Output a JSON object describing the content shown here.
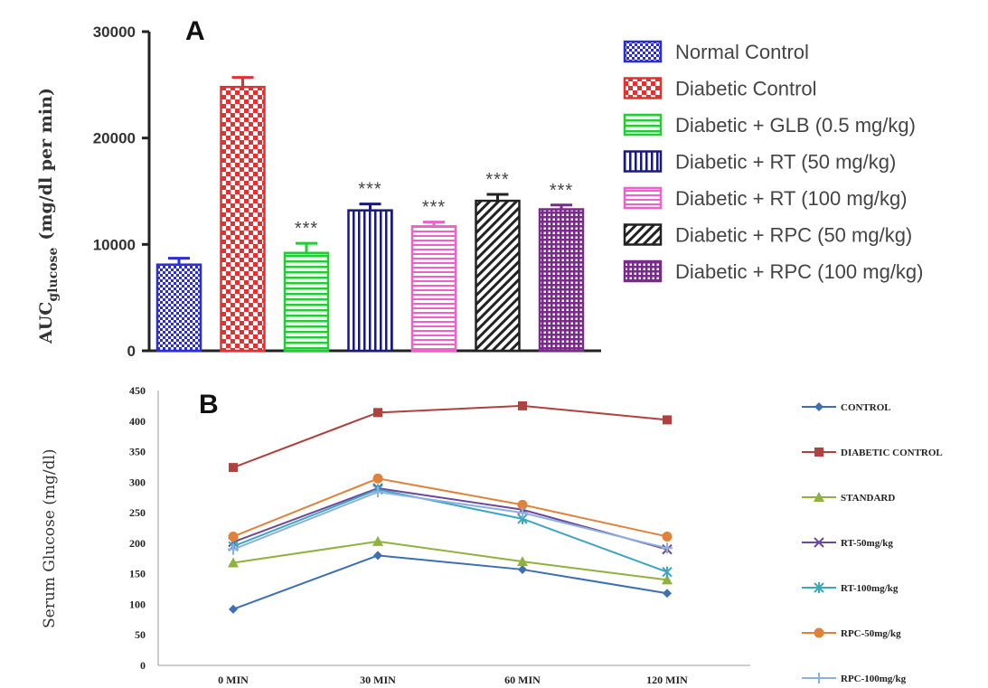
{
  "chart_data": [
    {
      "type": "bar",
      "panel_label": "A",
      "ylabel": "AUC",
      "ylabel_sub": "glucose",
      "ylabel_unit": "(mg/dl per min)",
      "ylim": [
        0,
        30000
      ],
      "yticks": [
        "0",
        "10000",
        "20000",
        "30000"
      ],
      "grid": false,
      "legend_position": "right",
      "series": [
        {
          "name": "Normal Control",
          "value": 8100,
          "error": 600,
          "sig": "",
          "color": "#2b2fd0",
          "pattern": "check-blue"
        },
        {
          "name": "Diabetic Control",
          "value": 24800,
          "error": 900,
          "sig": "",
          "color": "#e53030",
          "pattern": "check-red"
        },
        {
          "name": "Diabetic + GLB (0.5 mg/kg)",
          "value": 9200,
          "error": 900,
          "sig": "***",
          "color": "#22cc33",
          "pattern": "hlines-green"
        },
        {
          "name": "Diabetic + RT (50 mg/kg)",
          "value": 13200,
          "error": 600,
          "sig": "***",
          "color": "#1a1a7a",
          "pattern": "vlines-navy"
        },
        {
          "name": "Diabetic + RT (100 mg/kg)",
          "value": 11700,
          "error": 400,
          "sig": "***",
          "color": "#f060c8",
          "pattern": "hlines-pink"
        },
        {
          "name": "Diabetic + RPC (50 mg/kg)",
          "value": 14100,
          "error": 600,
          "sig": "***",
          "color": "#222222",
          "pattern": "diag-black"
        },
        {
          "name": "Diabetic + RPC (100 mg/kg)",
          "value": 13300,
          "error": 400,
          "sig": "***",
          "color": "#7a2a8a",
          "pattern": "grid-purple"
        }
      ]
    },
    {
      "type": "line",
      "panel_label": "B",
      "ylabel": "Serum Glucose (mg/dl)",
      "xlabel": "",
      "categories": [
        "0 MIN",
        "30 MIN",
        "60 MIN",
        "120 MIN"
      ],
      "ylim": [
        0,
        450
      ],
      "yticks": [
        "0",
        "50",
        "100",
        "150",
        "200",
        "250",
        "300",
        "350",
        "400",
        "450"
      ],
      "grid": false,
      "legend_position": "right",
      "series": [
        {
          "name": "CONTROL",
          "values": [
            92,
            180,
            157,
            118
          ],
          "color": "#3c6fb4",
          "marker": "diamond"
        },
        {
          "name": "DIABETIC CONTROL",
          "values": [
            324,
            414,
            425,
            402
          ],
          "color": "#b0413e",
          "marker": "square"
        },
        {
          "name": "STANDARD",
          "values": [
            168,
            203,
            170,
            140
          ],
          "color": "#8fb23f",
          "marker": "triangle"
        },
        {
          "name": "RT-50mg/kg",
          "values": [
            202,
            290,
            255,
            190
          ],
          "color": "#6b4a9a",
          "marker": "x"
        },
        {
          "name": "RT-100mg/kg",
          "values": [
            195,
            288,
            240,
            153
          ],
          "color": "#3fa6c0",
          "marker": "star"
        },
        {
          "name": "RPC-50mg/kg",
          "values": [
            211,
            306,
            263,
            211
          ],
          "color": "#e0823a",
          "marker": "circle"
        },
        {
          "name": "RPC-100mg/kg",
          "values": [
            190,
            284,
            250,
            192
          ],
          "color": "#8db0e0",
          "marker": "plus"
        }
      ]
    }
  ]
}
